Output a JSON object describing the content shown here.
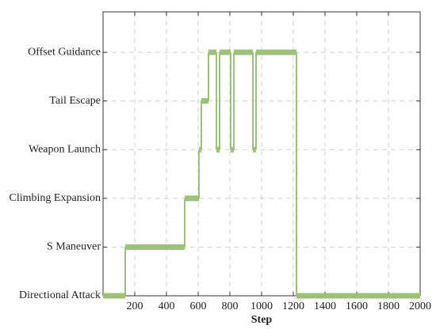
{
  "chart_data": {
    "type": "step",
    "xlabel": "Step",
    "xlim": [
      0,
      2000
    ],
    "xticks": [
      200,
      400,
      600,
      800,
      1000,
      1200,
      1400,
      1600,
      1800,
      2000
    ],
    "ylim": [
      0,
      5.83
    ],
    "yticks": [
      {
        "value": 0,
        "label": "Directional Attack"
      },
      {
        "value": 1,
        "label": "S Maneuver"
      },
      {
        "value": 2,
        "label": "Climbing Expansion"
      },
      {
        "value": 3,
        "label": "Weapon Launch"
      },
      {
        "value": 4,
        "label": "Tail Escape"
      },
      {
        "value": 5,
        "label": "Offset Guidance"
      }
    ],
    "grid": true,
    "color": "#9dc17a",
    "start": [
      0,
      140,
      515,
      605,
      620,
      665,
      715,
      735,
      805,
      825,
      945,
      965,
      1220
    ],
    "end": [
      140,
      515,
      605,
      620,
      665,
      715,
      735,
      805,
      825,
      945,
      965,
      1220,
      2000
    ],
    "values": [
      0,
      1,
      2,
      3,
      4,
      5,
      3,
      5,
      3,
      5,
      3,
      5,
      0
    ]
  }
}
